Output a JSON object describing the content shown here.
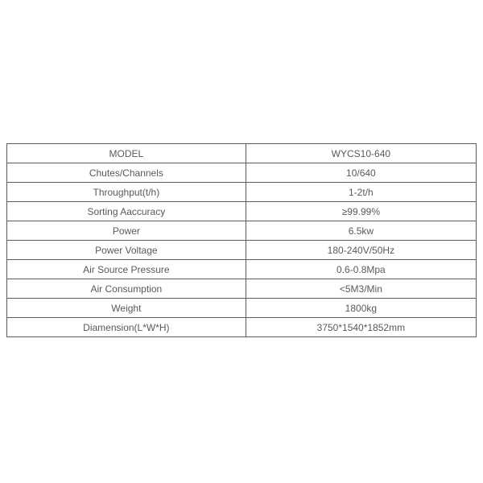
{
  "table": {
    "rows": [
      {
        "label": "MODEL",
        "value": "WYCS10-640"
      },
      {
        "label": "Chutes/Channels",
        "value": "10/640"
      },
      {
        "label": "Throughput(t/h)",
        "value": "1-2t/h"
      },
      {
        "label": "Sorting Aaccuracy",
        "value": "≥99.99%"
      },
      {
        "label": "Power",
        "value": "6.5kw"
      },
      {
        "label": "Power Voltage",
        "value": "180-240V/50Hz"
      },
      {
        "label": "Air Source Pressure",
        "value": "0.6-0.8Mpa"
      },
      {
        "label": "Air Consumption",
        "value": "<5M3/Min"
      },
      {
        "label": "Weight",
        "value": "1800kg"
      },
      {
        "label": "Diamension(L*W*H)",
        "value": "3750*1540*1852mm"
      }
    ],
    "colors": {
      "text": "#58595b",
      "border": "#595a5c",
      "background": "#ffffff"
    }
  }
}
